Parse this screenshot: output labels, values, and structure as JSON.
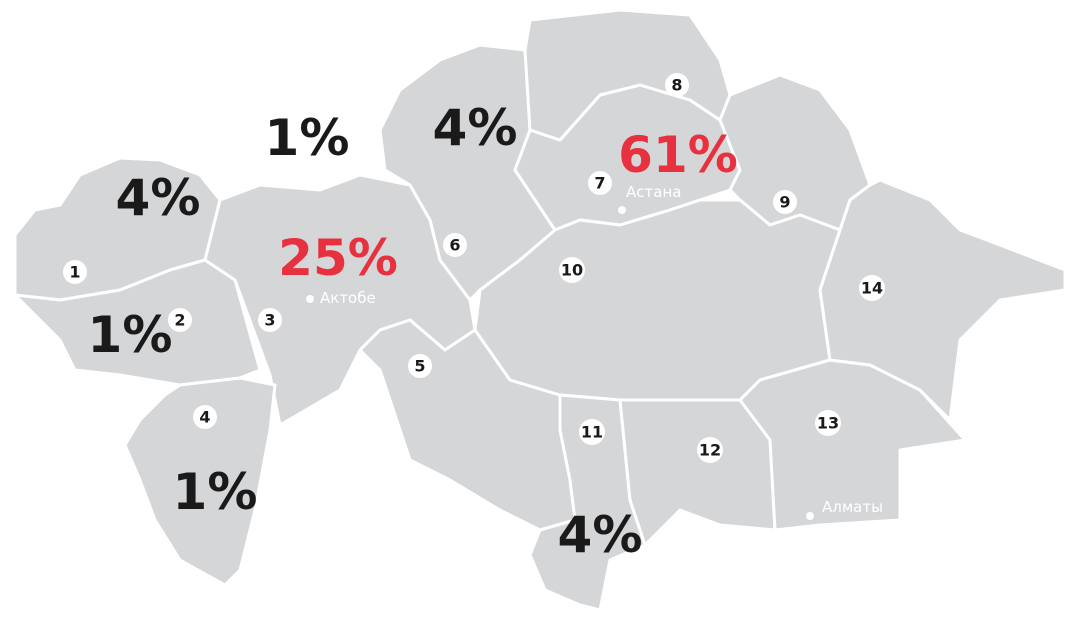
{
  "regions": [
    "1",
    "2",
    "3",
    "4",
    "5",
    "6",
    "7",
    "8",
    "9",
    "10",
    "11",
    "12",
    "13",
    "14"
  ],
  "percentages": [
    "4%",
    "1%",
    "25%",
    "1%",
    "4%",
    "61%",
    "4%",
    "1%"
  ],
  "cities": [
    "Актобе",
    "Астана",
    "Алматы"
  ]
}
